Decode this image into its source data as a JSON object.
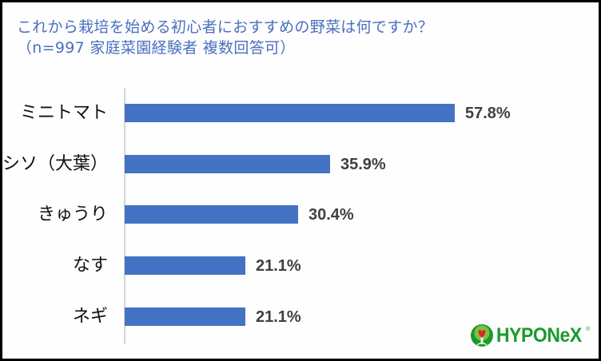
{
  "chart_data": {
    "type": "bar",
    "orientation": "horizontal",
    "title": "これから栽培を始める初心者におすすめの野菜は何ですか？",
    "subtitle": "（n=997 家庭菜園経験者 複数回答可）",
    "categories": [
      "ミニトマト",
      "シソ（大葉）",
      "きゅうり",
      "なす",
      "ネギ"
    ],
    "values": [
      57.8,
      35.9,
      30.4,
      21.1,
      21.1
    ],
    "value_labels": [
      "57.8%",
      "35.9%",
      "30.4%",
      "21.1%",
      "21.1%"
    ],
    "unit": "%",
    "xlabel": "",
    "ylabel": "",
    "xlim": [
      0,
      100
    ],
    "grid": false,
    "legend": null,
    "bar_color": "#4472c4"
  },
  "header": {
    "line1": "これから栽培を始める初心者におすすめの野菜は何ですか？",
    "line2": "（n=997 家庭菜園経験者 複数回答可）"
  },
  "rows": [
    {
      "label": "ミニトマト",
      "value": 57.8,
      "value_label": "57.8%"
    },
    {
      "label": "シソ（大葉）",
      "value": 35.9,
      "value_label": "35.9%"
    },
    {
      "label": "きゅうり",
      "value": 30.4,
      "value_label": "30.4%"
    },
    {
      "label": "なす",
      "value": 21.1,
      "value_label": "21.1%"
    },
    {
      "label": "ネギ",
      "value": 21.1,
      "value_label": "21.1%"
    }
  ],
  "logo": {
    "text": "HYPONeX",
    "registered": "®",
    "color": "#1a9a2a"
  },
  "colors": {
    "title": "#4a6fbf",
    "bar": "#4472c4",
    "value_label": "#404040",
    "axis": "#d4d4d4",
    "frame": "#000000"
  }
}
